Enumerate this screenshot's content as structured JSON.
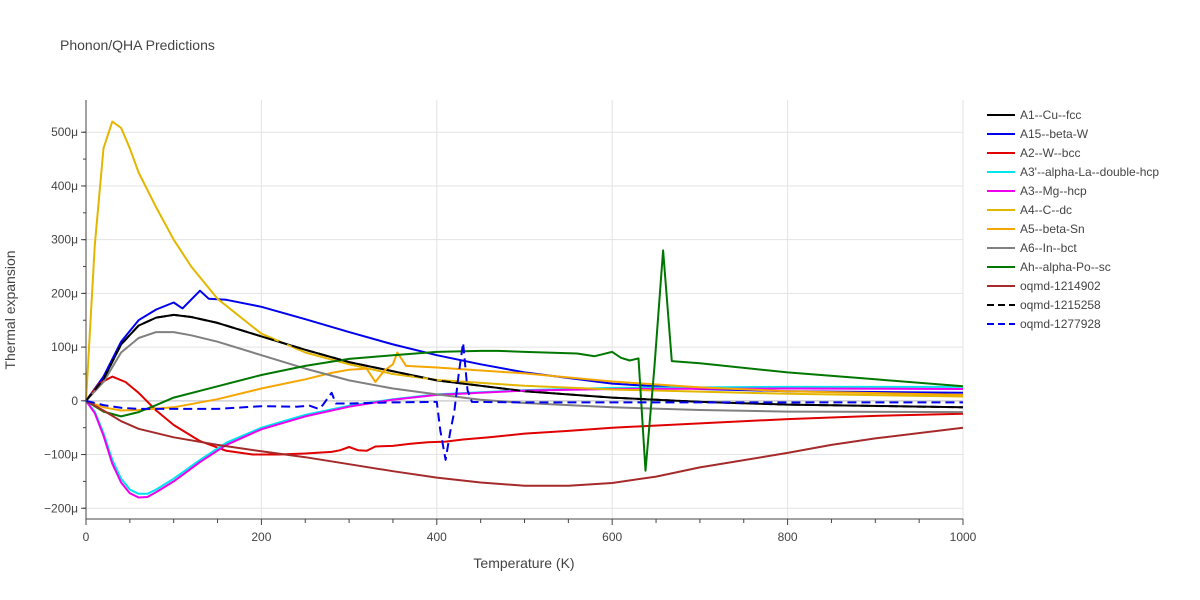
{
  "chart_data": {
    "type": "line",
    "title": "Phonon/QHA Predictions",
    "xlabel": "Temperature (K)",
    "ylabel": "Thermal expansion",
    "xlim": [
      0,
      1000
    ],
    "ylim": [
      -0.00022,
      0.00056
    ],
    "xticks": [
      0,
      200,
      400,
      600,
      800,
      1000
    ],
    "yticks": [
      -0.0002,
      -0.0001,
      0,
      0.0001,
      0.0002,
      0.0003,
      0.0004,
      0.0005
    ],
    "ytick_labels": [
      "−200μ",
      "−100μ",
      "0",
      "100μ",
      "200μ",
      "300μ",
      "400μ",
      "500μ"
    ],
    "grid": true,
    "legend_position": "right",
    "series": [
      {
        "name": "A1--Cu--fcc",
        "color": "#000000",
        "dash": "solid",
        "points": [
          [
            0,
            0
          ],
          [
            20,
            4e-05
          ],
          [
            40,
            0.000105
          ],
          [
            60,
            0.00014
          ],
          [
            80,
            0.000155
          ],
          [
            100,
            0.00016
          ],
          [
            120,
            0.000156
          ],
          [
            150,
            0.000145
          ],
          [
            200,
            0.00012
          ],
          [
            250,
            9.5e-05
          ],
          [
            300,
            7.2e-05
          ],
          [
            400,
            3.8e-05
          ],
          [
            500,
            1.8e-05
          ],
          [
            600,
            6e-06
          ],
          [
            700,
            -2e-06
          ],
          [
            800,
            -7e-06
          ],
          [
            1000,
            -1.2e-05
          ]
        ]
      },
      {
        "name": "A15--beta-W",
        "color": "#0000ee",
        "dash": "solid",
        "points": [
          [
            0,
            0
          ],
          [
            20,
            4.5e-05
          ],
          [
            40,
            0.00011
          ],
          [
            60,
            0.00015
          ],
          [
            80,
            0.00017
          ],
          [
            100,
            0.000183
          ],
          [
            110,
            0.000172
          ],
          [
            130,
            0.000205
          ],
          [
            140,
            0.00019
          ],
          [
            160,
            0.000188
          ],
          [
            200,
            0.000175
          ],
          [
            250,
            0.000152
          ],
          [
            300,
            0.000128
          ],
          [
            350,
            0.000105
          ],
          [
            400,
            8.5e-05
          ],
          [
            450,
            6.8e-05
          ],
          [
            500,
            5.3e-05
          ],
          [
            600,
            3.2e-05
          ],
          [
            700,
            2.2e-05
          ],
          [
            800,
            1.8e-05
          ],
          [
            1000,
            1.5e-05
          ]
        ]
      },
      {
        "name": "A2--W--bcc",
        "color": "#e00000",
        "dash": "solid",
        "points": [
          [
            0,
            0
          ],
          [
            15,
            3.2e-05
          ],
          [
            30,
            4.5e-05
          ],
          [
            45,
            3.5e-05
          ],
          [
            60,
            1.5e-05
          ],
          [
            80,
            -1.8e-05
          ],
          [
            100,
            -4.5e-05
          ],
          [
            130,
            -7.5e-05
          ],
          [
            160,
            -9.3e-05
          ],
          [
            190,
            -0.0001
          ],
          [
            220,
            -0.0001
          ],
          [
            250,
            -9.8e-05
          ],
          [
            280,
            -9.5e-05
          ],
          [
            290,
            -9.2e-05
          ],
          [
            300,
            -8.6e-05
          ],
          [
            310,
            -9.2e-05
          ],
          [
            320,
            -9.3e-05
          ],
          [
            330,
            -8.5e-05
          ],
          [
            350,
            -8.4e-05
          ],
          [
            370,
            -8e-05
          ],
          [
            390,
            -7.7e-05
          ],
          [
            410,
            -7.6e-05
          ],
          [
            430,
            -7.2e-05
          ],
          [
            460,
            -6.8e-05
          ],
          [
            500,
            -6.1e-05
          ],
          [
            550,
            -5.6e-05
          ],
          [
            600,
            -5e-05
          ],
          [
            700,
            -4.2e-05
          ],
          [
            800,
            -3.4e-05
          ],
          [
            900,
            -2.8e-05
          ],
          [
            1000,
            -2.4e-05
          ]
        ]
      },
      {
        "name": "A3'--alpha-La--double-hcp",
        "color": "#00e5ee",
        "dash": "solid",
        "points": [
          [
            0,
            0
          ],
          [
            10,
            -2e-05
          ],
          [
            20,
            -6e-05
          ],
          [
            30,
            -0.00011
          ],
          [
            40,
            -0.000145
          ],
          [
            50,
            -0.000165
          ],
          [
            60,
            -0.000173
          ],
          [
            70,
            -0.000173
          ],
          [
            80,
            -0.000165
          ],
          [
            100,
            -0.000145
          ],
          [
            130,
            -0.00011
          ],
          [
            160,
            -7.8e-05
          ],
          [
            200,
            -5e-05
          ],
          [
            250,
            -2.6e-05
          ],
          [
            300,
            -9e-06
          ],
          [
            350,
            3e-06
          ],
          [
            400,
            1.2e-05
          ],
          [
            500,
            2e-05
          ],
          [
            600,
            2.4e-05
          ],
          [
            800,
            2.6e-05
          ],
          [
            1000,
            2.6e-05
          ]
        ]
      },
      {
        "name": "A3--Mg--hcp",
        "color": "#ee00ee",
        "dash": "solid",
        "points": [
          [
            0,
            0
          ],
          [
            10,
            -2.3e-05
          ],
          [
            20,
            -6.5e-05
          ],
          [
            30,
            -0.000117
          ],
          [
            40,
            -0.000152
          ],
          [
            50,
            -0.000172
          ],
          [
            60,
            -0.00018
          ],
          [
            70,
            -0.000179
          ],
          [
            80,
            -0.00017
          ],
          [
            100,
            -0.00015
          ],
          [
            130,
            -0.000114
          ],
          [
            160,
            -8.2e-05
          ],
          [
            200,
            -5.3e-05
          ],
          [
            250,
            -2.9e-05
          ],
          [
            300,
            -1.1e-05
          ],
          [
            350,
            2e-06
          ],
          [
            400,
            1.1e-05
          ],
          [
            500,
            1.9e-05
          ],
          [
            600,
            2.2e-05
          ],
          [
            800,
            2.3e-05
          ],
          [
            1000,
            2.2e-05
          ]
        ]
      },
      {
        "name": "A4--C--dc",
        "color": "#e3b600",
        "dash": "solid",
        "points": [
          [
            0,
            0
          ],
          [
            10,
            0.00029
          ],
          [
            20,
            0.00047
          ],
          [
            30,
            0.00052
          ],
          [
            40,
            0.000508
          ],
          [
            50,
            0.00047
          ],
          [
            60,
            0.000425
          ],
          [
            80,
            0.00036
          ],
          [
            100,
            0.0003
          ],
          [
            120,
            0.00025
          ],
          [
            150,
            0.00019
          ],
          [
            200,
            0.000125
          ],
          [
            250,
            9e-05
          ],
          [
            300,
            6.8e-05
          ],
          [
            350,
            5e-05
          ],
          [
            400,
            3.9e-05
          ],
          [
            500,
            2.8e-05
          ],
          [
            600,
            2.1e-05
          ],
          [
            800,
            1.3e-05
          ],
          [
            1000,
            8e-06
          ]
        ]
      },
      {
        "name": "A5--beta-Sn",
        "color": "#f5a700",
        "dash": "solid",
        "points": [
          [
            0,
            0
          ],
          [
            20,
            -1.2e-05
          ],
          [
            40,
            -1.8e-05
          ],
          [
            60,
            -1.7e-05
          ],
          [
            100,
            -1.2e-05
          ],
          [
            150,
            3e-06
          ],
          [
            200,
            2.3e-05
          ],
          [
            250,
            4e-05
          ],
          [
            280,
            5.2e-05
          ],
          [
            300,
            5.8e-05
          ],
          [
            320,
            6e-05
          ],
          [
            330,
            3.5e-05
          ],
          [
            340,
            5.6e-05
          ],
          [
            350,
            6.8e-05
          ],
          [
            355,
            9e-05
          ],
          [
            365,
            6.5e-05
          ],
          [
            400,
            6.2e-05
          ],
          [
            500,
            5.1e-05
          ],
          [
            600,
            3.6e-05
          ],
          [
            700,
            2.5e-05
          ],
          [
            800,
            1.8e-05
          ],
          [
            1000,
            1.1e-05
          ]
        ]
      },
      {
        "name": "A6--In--bct",
        "color": "#808080",
        "dash": "solid",
        "points": [
          [
            0,
            0
          ],
          [
            20,
            3.5e-05
          ],
          [
            40,
            9e-05
          ],
          [
            60,
            0.000117
          ],
          [
            80,
            0.000128
          ],
          [
            100,
            0.000128
          ],
          [
            120,
            0.000122
          ],
          [
            150,
            0.00011
          ],
          [
            200,
            8.5e-05
          ],
          [
            250,
            6e-05
          ],
          [
            300,
            3.8e-05
          ],
          [
            350,
            2.3e-05
          ],
          [
            400,
            1.2e-05
          ],
          [
            450,
            2e-06
          ],
          [
            500,
            -4e-06
          ],
          [
            600,
            -1.2e-05
          ],
          [
            700,
            -1.7e-05
          ],
          [
            800,
            -2e-05
          ],
          [
            1000,
            -2.1e-05
          ]
        ]
      },
      {
        "name": "Ah--alpha-Po--sc",
        "color": "#007700",
        "dash": "solid",
        "points": [
          [
            0,
            0
          ],
          [
            20,
            -2e-05
          ],
          [
            40,
            -2.9e-05
          ],
          [
            60,
            -2.1e-05
          ],
          [
            80,
            -8e-06
          ],
          [
            100,
            6e-06
          ],
          [
            150,
            2.7e-05
          ],
          [
            200,
            4.8e-05
          ],
          [
            250,
            6.5e-05
          ],
          [
            300,
            7.8e-05
          ],
          [
            350,
            8.5e-05
          ],
          [
            400,
            9.1e-05
          ],
          [
            450,
            9.3e-05
          ],
          [
            470,
            9.3e-05
          ],
          [
            500,
            9.1e-05
          ],
          [
            560,
            8.8e-05
          ],
          [
            580,
            8.3e-05
          ],
          [
            600,
            9.1e-05
          ],
          [
            610,
            8e-05
          ],
          [
            620,
            7.5e-05
          ],
          [
            630,
            7.9e-05
          ],
          [
            638,
            -0.00013
          ],
          [
            648,
            6e-05
          ],
          [
            658,
            0.00028
          ],
          [
            668,
            7.4e-05
          ],
          [
            700,
            7e-05
          ],
          [
            800,
            5.3e-05
          ],
          [
            900,
            4e-05
          ],
          [
            1000,
            2.7e-05
          ]
        ]
      },
      {
        "name": "oqmd-1214902",
        "color": "#a52a2a",
        "dash": "solid",
        "points": [
          [
            0,
            0
          ],
          [
            20,
            -1.8e-05
          ],
          [
            40,
            -3.8e-05
          ],
          [
            60,
            -5.2e-05
          ],
          [
            100,
            -6.8e-05
          ],
          [
            150,
            -8.2e-05
          ],
          [
            200,
            -9.4e-05
          ],
          [
            250,
            -0.000105
          ],
          [
            300,
            -0.000118
          ],
          [
            350,
            -0.000131
          ],
          [
            400,
            -0.000143
          ],
          [
            450,
            -0.000152
          ],
          [
            500,
            -0.000158
          ],
          [
            550,
            -0.000158
          ],
          [
            600,
            -0.000153
          ],
          [
            650,
            -0.000141
          ],
          [
            700,
            -0.000124
          ],
          [
            800,
            -9.7e-05
          ],
          [
            850,
            -8.2e-05
          ],
          [
            900,
            -7e-05
          ],
          [
            1000,
            -5e-05
          ]
        ]
      },
      {
        "name": "oqmd-1215258",
        "color": "#000000",
        "dash": "dash",
        "points": [
          [
            0,
            0
          ],
          [
            20,
            4e-05
          ],
          [
            40,
            0.000105
          ],
          [
            60,
            0.00014
          ],
          [
            80,
            0.000155
          ],
          [
            100,
            0.00016
          ],
          [
            120,
            0.000156
          ],
          [
            150,
            0.000145
          ],
          [
            200,
            0.00012
          ],
          [
            250,
            9.5e-05
          ],
          [
            300,
            7.2e-05
          ],
          [
            400,
            3.8e-05
          ],
          [
            500,
            1.8e-05
          ],
          [
            600,
            6e-06
          ],
          [
            700,
            -2e-06
          ],
          [
            800,
            -7e-06
          ],
          [
            1000,
            -1.2e-05
          ]
        ]
      },
      {
        "name": "oqmd-1277928",
        "color": "#0000ee",
        "dash": "dash",
        "points": [
          [
            0,
            0
          ],
          [
            20,
            -8e-06
          ],
          [
            40,
            -1.3e-05
          ],
          [
            60,
            -1.5e-05
          ],
          [
            100,
            -1.5e-05
          ],
          [
            150,
            -1.5e-05
          ],
          [
            180,
            -1.2e-05
          ],
          [
            200,
            -1e-05
          ],
          [
            240,
            -1.1e-05
          ],
          [
            255,
            -9e-06
          ],
          [
            265,
            -1.5e-05
          ],
          [
            270,
            -8e-06
          ],
          [
            280,
            1.5e-05
          ],
          [
            285,
            -5e-06
          ],
          [
            300,
            -5e-06
          ],
          [
            350,
            -3e-06
          ],
          [
            400,
            -2e-06
          ],
          [
            404,
            -5.5e-05
          ],
          [
            410,
            -0.00011
          ],
          [
            415,
            -6e-05
          ],
          [
            420,
            -2e-05
          ],
          [
            425,
            5e-05
          ],
          [
            430,
            0.000108
          ],
          [
            435,
            2e-05
          ],
          [
            440,
            -2e-06
          ],
          [
            500,
            -3e-06
          ],
          [
            600,
            -3e-06
          ],
          [
            800,
            -3e-06
          ],
          [
            1000,
            -3e-06
          ]
        ]
      }
    ]
  }
}
